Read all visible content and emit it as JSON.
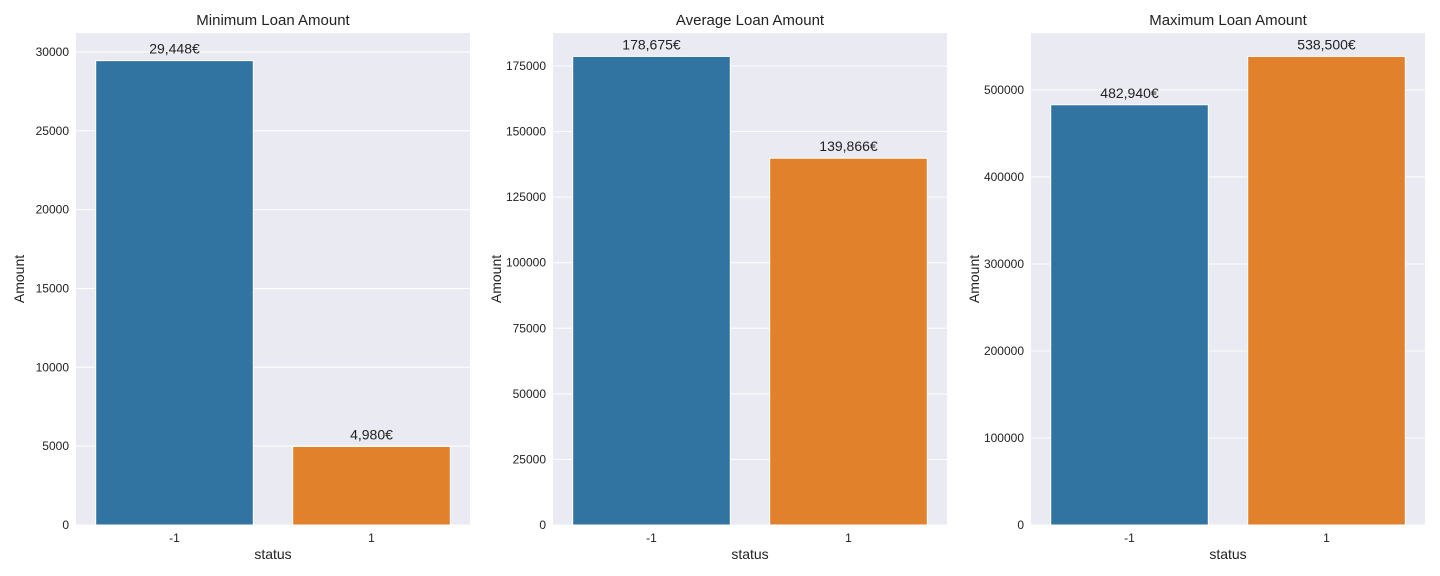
{
  "chart_data": [
    {
      "type": "bar",
      "title": "Minimum Loan Amount",
      "xlabel": "status",
      "ylabel": "Amount",
      "categories": [
        "-1",
        "1"
      ],
      "values": [
        29448,
        4980
      ],
      "value_labels": [
        "29,448€",
        "4,980€"
      ],
      "colors": [
        "#3274a1",
        "#e1812c"
      ],
      "ylim": [
        0,
        31200
      ],
      "yticks": [
        0,
        5000,
        10000,
        15000,
        20000,
        25000,
        30000
      ],
      "ytick_labels": [
        "0",
        "5000",
        "10000",
        "15000",
        "20000",
        "25000",
        "30000"
      ],
      "grid": true
    },
    {
      "type": "bar",
      "title": "Average Loan Amount",
      "xlabel": "status",
      "ylabel": "Amount",
      "categories": [
        "-1",
        "1"
      ],
      "values": [
        178675,
        139866
      ],
      "value_labels": [
        "178,675€",
        "139,866€"
      ],
      "colors": [
        "#3274a1",
        "#e1812c"
      ],
      "ylim": [
        0,
        187600
      ],
      "yticks": [
        0,
        25000,
        50000,
        75000,
        100000,
        125000,
        150000,
        175000
      ],
      "ytick_labels": [
        "0",
        "25000",
        "50000",
        "75000",
        "100000",
        "125000",
        "150000",
        "175000"
      ],
      "grid": true
    },
    {
      "type": "bar",
      "title": "Maximum Loan Amount",
      "xlabel": "status",
      "ylabel": "Amount",
      "categories": [
        "-1",
        "1"
      ],
      "values": [
        482940,
        538500
      ],
      "value_labels": [
        "482,940€",
        "538,500€"
      ],
      "colors": [
        "#3274a1",
        "#e1812c"
      ],
      "ylim": [
        0,
        565400
      ],
      "yticks": [
        0,
        100000,
        200000,
        300000,
        400000,
        500000
      ],
      "ytick_labels": [
        "0",
        "100000",
        "200000",
        "300000",
        "400000",
        "500000"
      ],
      "grid": true
    }
  ]
}
